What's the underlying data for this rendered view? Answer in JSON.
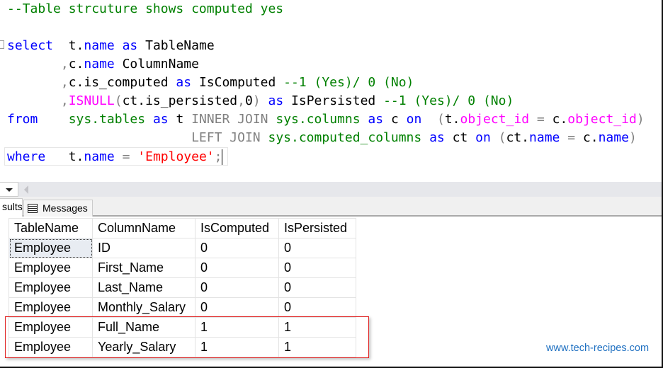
{
  "editor": {
    "lines": [
      [
        [
          "cm",
          "--Table strcuture shows computed yes"
        ]
      ],
      [],
      [
        [
          "kw",
          "select"
        ],
        [
          "tx",
          "  t."
        ],
        [
          "kw",
          "name"
        ],
        [
          "tx",
          " "
        ],
        [
          "kw",
          "as"
        ],
        [
          "tx",
          " TableName"
        ]
      ],
      [
        [
          "tx",
          "       "
        ],
        [
          "gr",
          ","
        ],
        [
          "tx",
          "c."
        ],
        [
          "kw",
          "name"
        ],
        [
          "tx",
          " ColumnName"
        ]
      ],
      [
        [
          "tx",
          "       "
        ],
        [
          "gr",
          ","
        ],
        [
          "tx",
          "c.is_computed "
        ],
        [
          "kw",
          "as"
        ],
        [
          "tx",
          " IsComputed "
        ],
        [
          "cm",
          "--1 (Yes)/ 0 (No)"
        ]
      ],
      [
        [
          "tx",
          "       "
        ],
        [
          "gr",
          ","
        ],
        [
          "fn",
          "ISNULL"
        ],
        [
          "gr",
          "("
        ],
        [
          "tx",
          "ct.is_persisted"
        ],
        [
          "gr",
          ","
        ],
        [
          "tx",
          "0"
        ],
        [
          "gr",
          ")"
        ],
        [
          "tx",
          " "
        ],
        [
          "kw",
          "as"
        ],
        [
          "tx",
          " IsPersisted "
        ],
        [
          "cm",
          "--1 (Yes)/ 0 (No)"
        ]
      ],
      [
        [
          "kw",
          "from"
        ],
        [
          "tx",
          "    "
        ],
        [
          "sys",
          "sys.tables"
        ],
        [
          "tx",
          " "
        ],
        [
          "kw",
          "as"
        ],
        [
          "tx",
          " t "
        ],
        [
          "gr",
          "INNER JOIN"
        ],
        [
          "tx",
          " "
        ],
        [
          "sys",
          "sys.columns"
        ],
        [
          "tx",
          " "
        ],
        [
          "kw",
          "as"
        ],
        [
          "tx",
          " c "
        ],
        [
          "kw",
          "on"
        ],
        [
          "tx",
          "  "
        ],
        [
          "gr",
          "("
        ],
        [
          "tx",
          "t."
        ],
        [
          "fn",
          "object_id"
        ],
        [
          "tx",
          " "
        ],
        [
          "gr",
          "="
        ],
        [
          "tx",
          " c."
        ],
        [
          "fn",
          "object_id"
        ],
        [
          "gr",
          ")"
        ]
      ],
      [
        [
          "tx",
          "                        "
        ],
        [
          "gr",
          "LEFT JOIN"
        ],
        [
          "tx",
          " "
        ],
        [
          "sys",
          "sys.computed_columns"
        ],
        [
          "tx",
          " "
        ],
        [
          "kw",
          "as"
        ],
        [
          "tx",
          " ct "
        ],
        [
          "kw",
          "on"
        ],
        [
          "tx",
          " "
        ],
        [
          "gr",
          "("
        ],
        [
          "tx",
          "ct."
        ],
        [
          "kw",
          "name"
        ],
        [
          "tx",
          " "
        ],
        [
          "gr",
          "="
        ],
        [
          "tx",
          " c."
        ],
        [
          "kw",
          "name"
        ],
        [
          "gr",
          ")"
        ]
      ],
      [
        [
          "kw",
          "where"
        ],
        [
          "tx",
          "   t."
        ],
        [
          "kw",
          "name"
        ],
        [
          "tx",
          " "
        ],
        [
          "gr",
          "="
        ],
        [
          "tx",
          " "
        ],
        [
          "str",
          "'Employee'"
        ],
        [
          "gr",
          ";"
        ]
      ]
    ]
  },
  "tabs": {
    "results": "sults",
    "messages": "Messages"
  },
  "grid": {
    "headers": [
      "TableName",
      "ColumnName",
      "IsComputed",
      "IsPersisted"
    ],
    "rows": [
      [
        "Employee",
        "ID",
        "0",
        "0"
      ],
      [
        "Employee",
        "First_Name",
        "0",
        "0"
      ],
      [
        "Employee",
        "Last_Name",
        "0",
        "0"
      ],
      [
        "Employee",
        "Monthly_Salary",
        "0",
        "0"
      ],
      [
        "Employee",
        "Full_Name",
        "1",
        "1"
      ],
      [
        "Employee",
        "Yearly_Salary",
        "1",
        "1"
      ]
    ],
    "highlighted_rows": [
      4,
      5
    ]
  },
  "watermark": "www.tech-recipes.com"
}
